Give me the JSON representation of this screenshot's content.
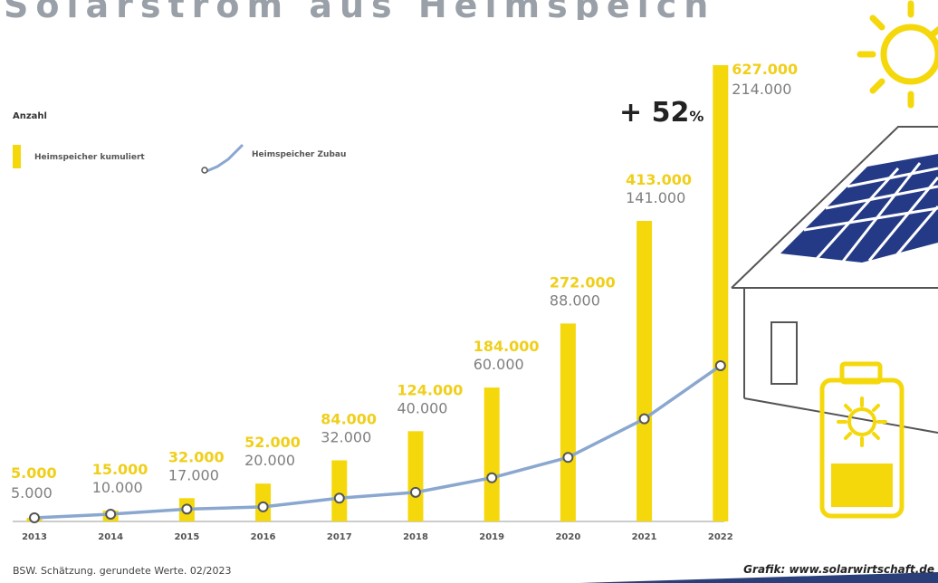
{
  "colors": {
    "bar": "#f4d80c",
    "line": "#8aa7cf",
    "cumulative_label": "#f0cf1a",
    "addition_label": "#7f7f7f",
    "axis_text": "#555555",
    "house_stroke": "#555555",
    "panel": "#253a86",
    "bottom_strip": "#2a3e7a"
  },
  "header": {
    "cut_title": "Solarstrom aus Heimspeichern"
  },
  "legend": {
    "title": "Anzahl",
    "bar_label": "Heimspeicher kumuliert",
    "line_label": "Heimspeicher Zubau"
  },
  "annotation": {
    "growth": "+ 52",
    "growth_unit": "%"
  },
  "footer": {
    "source": "BSW. Schätzung. gerundete Werte. 02/2023",
    "credit": "Grafik: www.solarwirtschaft.de"
  },
  "illustration": {
    "sun_icon": "sun-icon",
    "house_icon": "house-with-solar-panels-icon",
    "battery_icon": "battery-with-sun-icon"
  },
  "chart_data": {
    "type": "bar",
    "categories": [
      "2013",
      "2014",
      "2015",
      "2016",
      "2017",
      "2018",
      "2019",
      "2020",
      "2021",
      "2022"
    ],
    "series": [
      {
        "name": "Heimspeicher kumuliert",
        "type": "bar",
        "values": [
          5000,
          15000,
          32000,
          52000,
          84000,
          124000,
          184000,
          272000,
          413000,
          627000
        ],
        "labels": [
          "5.000",
          "15.000",
          "32.000",
          "52.000",
          "84.000",
          "124.000",
          "184.000",
          "272.000",
          "413.000",
          "627.000"
        ]
      },
      {
        "name": "Heimspeicher Zubau",
        "type": "line",
        "values": [
          5000,
          10000,
          17000,
          20000,
          32000,
          40000,
          60000,
          88000,
          141000,
          214000
        ],
        "labels": [
          "5.000",
          "10.000",
          "17.000",
          "20.000",
          "32.000",
          "40.000",
          "60.000",
          "88.000",
          "141.000",
          "214.000"
        ]
      }
    ],
    "ylim": [
      0,
      627000
    ],
    "grid": false,
    "legend_position": "top-left"
  }
}
